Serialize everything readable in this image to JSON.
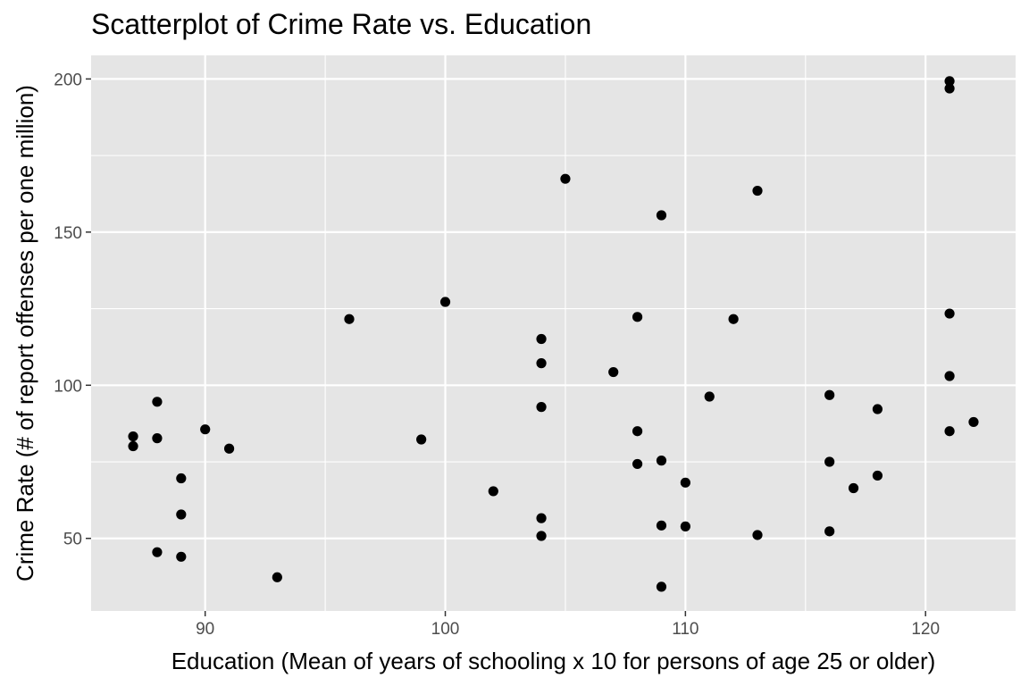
{
  "chart_data": {
    "type": "scatter",
    "title": "Scatterplot of Crime Rate vs. Education",
    "xlabel": "Education (Mean of years of schooling x 10 for persons of age 25 or older)",
    "ylabel": "Crime Rate (# of report offenses per one million)",
    "xlim": [
      85.25,
      123.75
    ],
    "ylim": [
      26.3,
      207.7
    ],
    "x_ticks": [
      90,
      100,
      110,
      120
    ],
    "x_tick_labels": [
      "90",
      "100",
      "110",
      "120"
    ],
    "x_minor": [
      95,
      105,
      115
    ],
    "y_ticks": [
      50,
      100,
      150,
      200
    ],
    "y_tick_labels": [
      "50",
      "100",
      "150",
      "200"
    ],
    "y_minor": [
      75,
      125,
      175
    ],
    "grid": true,
    "legend": "none",
    "colors": {
      "panel": "#e5e5e5",
      "grid": "#ffffff",
      "point": "#000000",
      "tick_text": "#4d4d4d"
    },
    "points": [
      {
        "x": 87,
        "y": 83.3
      },
      {
        "x": 87,
        "y": 80.1
      },
      {
        "x": 88,
        "y": 94.6
      },
      {
        "x": 88,
        "y": 82.7
      },
      {
        "x": 88,
        "y": 45.5
      },
      {
        "x": 89,
        "y": 69.6
      },
      {
        "x": 89,
        "y": 57.8
      },
      {
        "x": 89,
        "y": 44.0
      },
      {
        "x": 90,
        "y": 85.6
      },
      {
        "x": 91,
        "y": 79.3
      },
      {
        "x": 93,
        "y": 37.3
      },
      {
        "x": 96,
        "y": 121.6
      },
      {
        "x": 99,
        "y": 82.3
      },
      {
        "x": 100,
        "y": 127.2
      },
      {
        "x": 102,
        "y": 65.4
      },
      {
        "x": 104,
        "y": 115.1
      },
      {
        "x": 104,
        "y": 107.2
      },
      {
        "x": 104,
        "y": 92.9
      },
      {
        "x": 104,
        "y": 56.6
      },
      {
        "x": 104,
        "y": 50.8
      },
      {
        "x": 105,
        "y": 167.4
      },
      {
        "x": 107,
        "y": 104.3
      },
      {
        "x": 108,
        "y": 122.3
      },
      {
        "x": 108,
        "y": 85.0
      },
      {
        "x": 108,
        "y": 74.3
      },
      {
        "x": 109,
        "y": 155.5
      },
      {
        "x": 109,
        "y": 75.4
      },
      {
        "x": 109,
        "y": 54.2
      },
      {
        "x": 109,
        "y": 34.2
      },
      {
        "x": 110,
        "y": 68.2
      },
      {
        "x": 110,
        "y": 53.9
      },
      {
        "x": 111,
        "y": 96.3
      },
      {
        "x": 112,
        "y": 121.6
      },
      {
        "x": 113,
        "y": 163.5
      },
      {
        "x": 113,
        "y": 51.1
      },
      {
        "x": 116,
        "y": 96.8
      },
      {
        "x": 116,
        "y": 75.0
      },
      {
        "x": 116,
        "y": 52.3
      },
      {
        "x": 117,
        "y": 66.4
      },
      {
        "x": 118,
        "y": 92.2
      },
      {
        "x": 118,
        "y": 70.5
      },
      {
        "x": 121,
        "y": 199.3
      },
      {
        "x": 121,
        "y": 196.9
      },
      {
        "x": 121,
        "y": 123.4
      },
      {
        "x": 121,
        "y": 103.0
      },
      {
        "x": 121,
        "y": 85.0
      },
      {
        "x": 122,
        "y": 88.0
      }
    ]
  }
}
